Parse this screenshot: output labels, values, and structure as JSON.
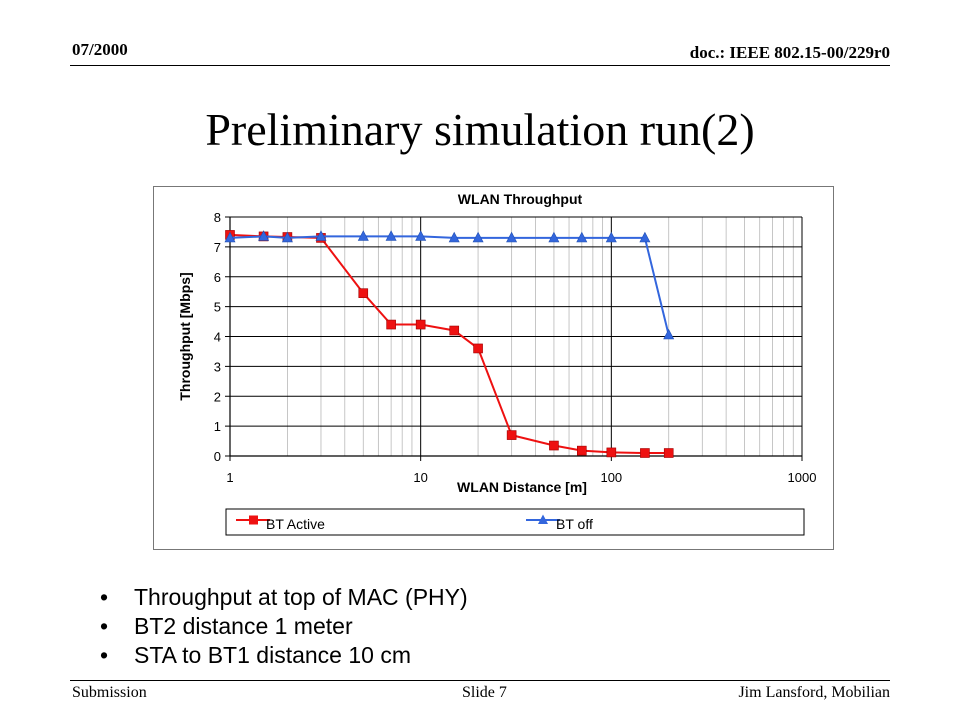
{
  "header": {
    "date": "07/2000",
    "doc": "doc.: IEEE 802.15-00/229r0"
  },
  "slide_title": "Preliminary simulation run(2)",
  "bullets": [
    "Throughput at top of MAC (PHY)",
    "BT2 distance 1 meter",
    "STA to BT1 distance 10 cm"
  ],
  "footer": {
    "left": "Submission",
    "center": "Slide 7",
    "right": "Jim Lansford, Mobilian"
  },
  "chart_data": {
    "type": "line",
    "title": "WLAN Throughput",
    "xlabel": "WLAN Distance [m]",
    "ylabel": "Throughput [Mbps]",
    "xscale": "log",
    "xlim": [
      1,
      1000
    ],
    "ylim": [
      0,
      8
    ],
    "xticks": [
      "1",
      "10",
      "100",
      "1000"
    ],
    "yticks": [
      "0",
      "1",
      "2",
      "3",
      "4",
      "5",
      "6",
      "7",
      "8"
    ],
    "grid": true,
    "legend_position": "bottom",
    "series": [
      {
        "name": "BT Active",
        "color": "#ee1111",
        "marker": "square",
        "x": [
          1,
          1.5,
          2,
          3,
          5,
          7,
          10,
          15,
          20,
          30,
          50,
          70,
          100,
          150,
          200
        ],
        "y": [
          7.4,
          7.35,
          7.33,
          7.3,
          5.45,
          4.4,
          4.4,
          4.2,
          3.6,
          0.7,
          0.35,
          0.18,
          0.12,
          0.1,
          0.1
        ]
      },
      {
        "name": "BT off",
        "color": "#3366dd",
        "marker": "triangle",
        "x": [
          1,
          1.5,
          2,
          3,
          5,
          7,
          10,
          15,
          20,
          30,
          50,
          70,
          100,
          150,
          200
        ],
        "y": [
          7.3,
          7.35,
          7.3,
          7.35,
          7.35,
          7.35,
          7.35,
          7.3,
          7.3,
          7.3,
          7.3,
          7.3,
          7.3,
          7.3,
          4.05
        ]
      }
    ]
  }
}
